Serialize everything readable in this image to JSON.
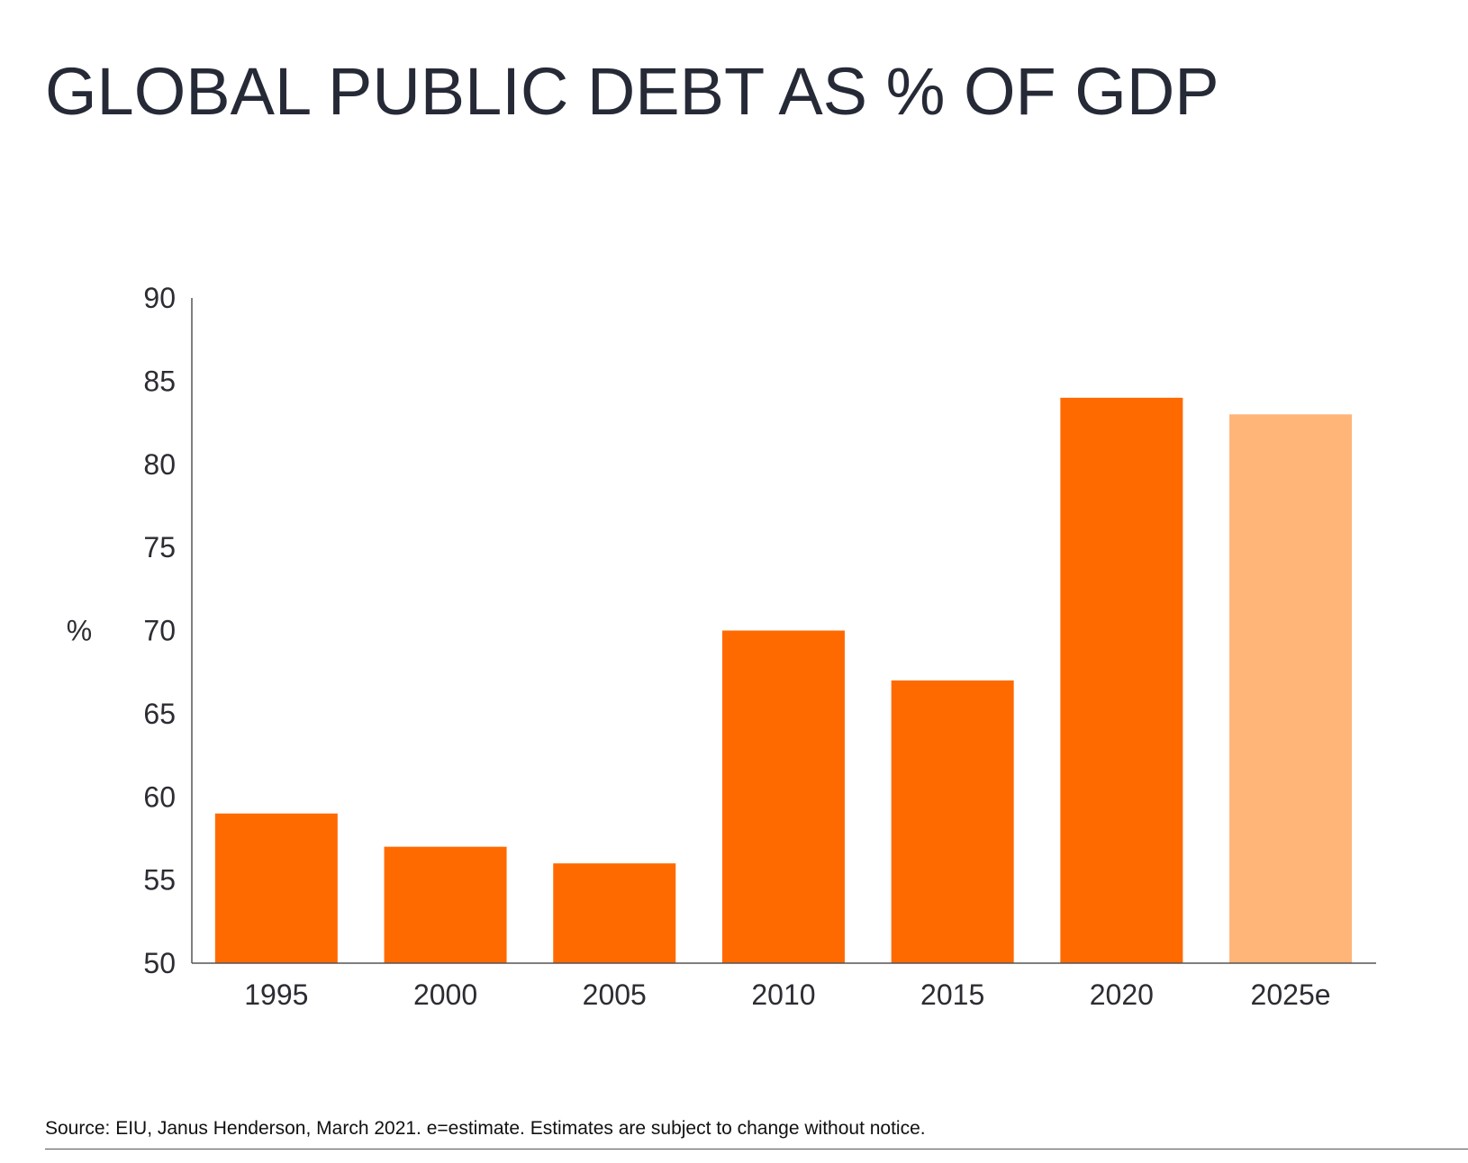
{
  "chart_data": {
    "type": "bar",
    "title": "GLOBAL PUBLIC DEBT AS % OF GDP",
    "xlabel": "",
    "ylabel": "%",
    "ylim": [
      50,
      90
    ],
    "yticks": [
      50,
      55,
      60,
      65,
      70,
      75,
      80,
      85,
      90
    ],
    "categories": [
      "1995",
      "2000",
      "2005",
      "2010",
      "2015",
      "2020",
      "2025e"
    ],
    "values": [
      59,
      57,
      56,
      70,
      67,
      84,
      83
    ],
    "estimate_flags": [
      false,
      false,
      false,
      false,
      false,
      false,
      true
    ],
    "grid": false,
    "legend": "none",
    "colors": {
      "actual": "#ff6a00",
      "estimate": "#ffb478",
      "axis": "#555555"
    },
    "source": "Source: EIU, Janus Henderson, March 2021. e=estimate. Estimates are subject to change without notice."
  }
}
